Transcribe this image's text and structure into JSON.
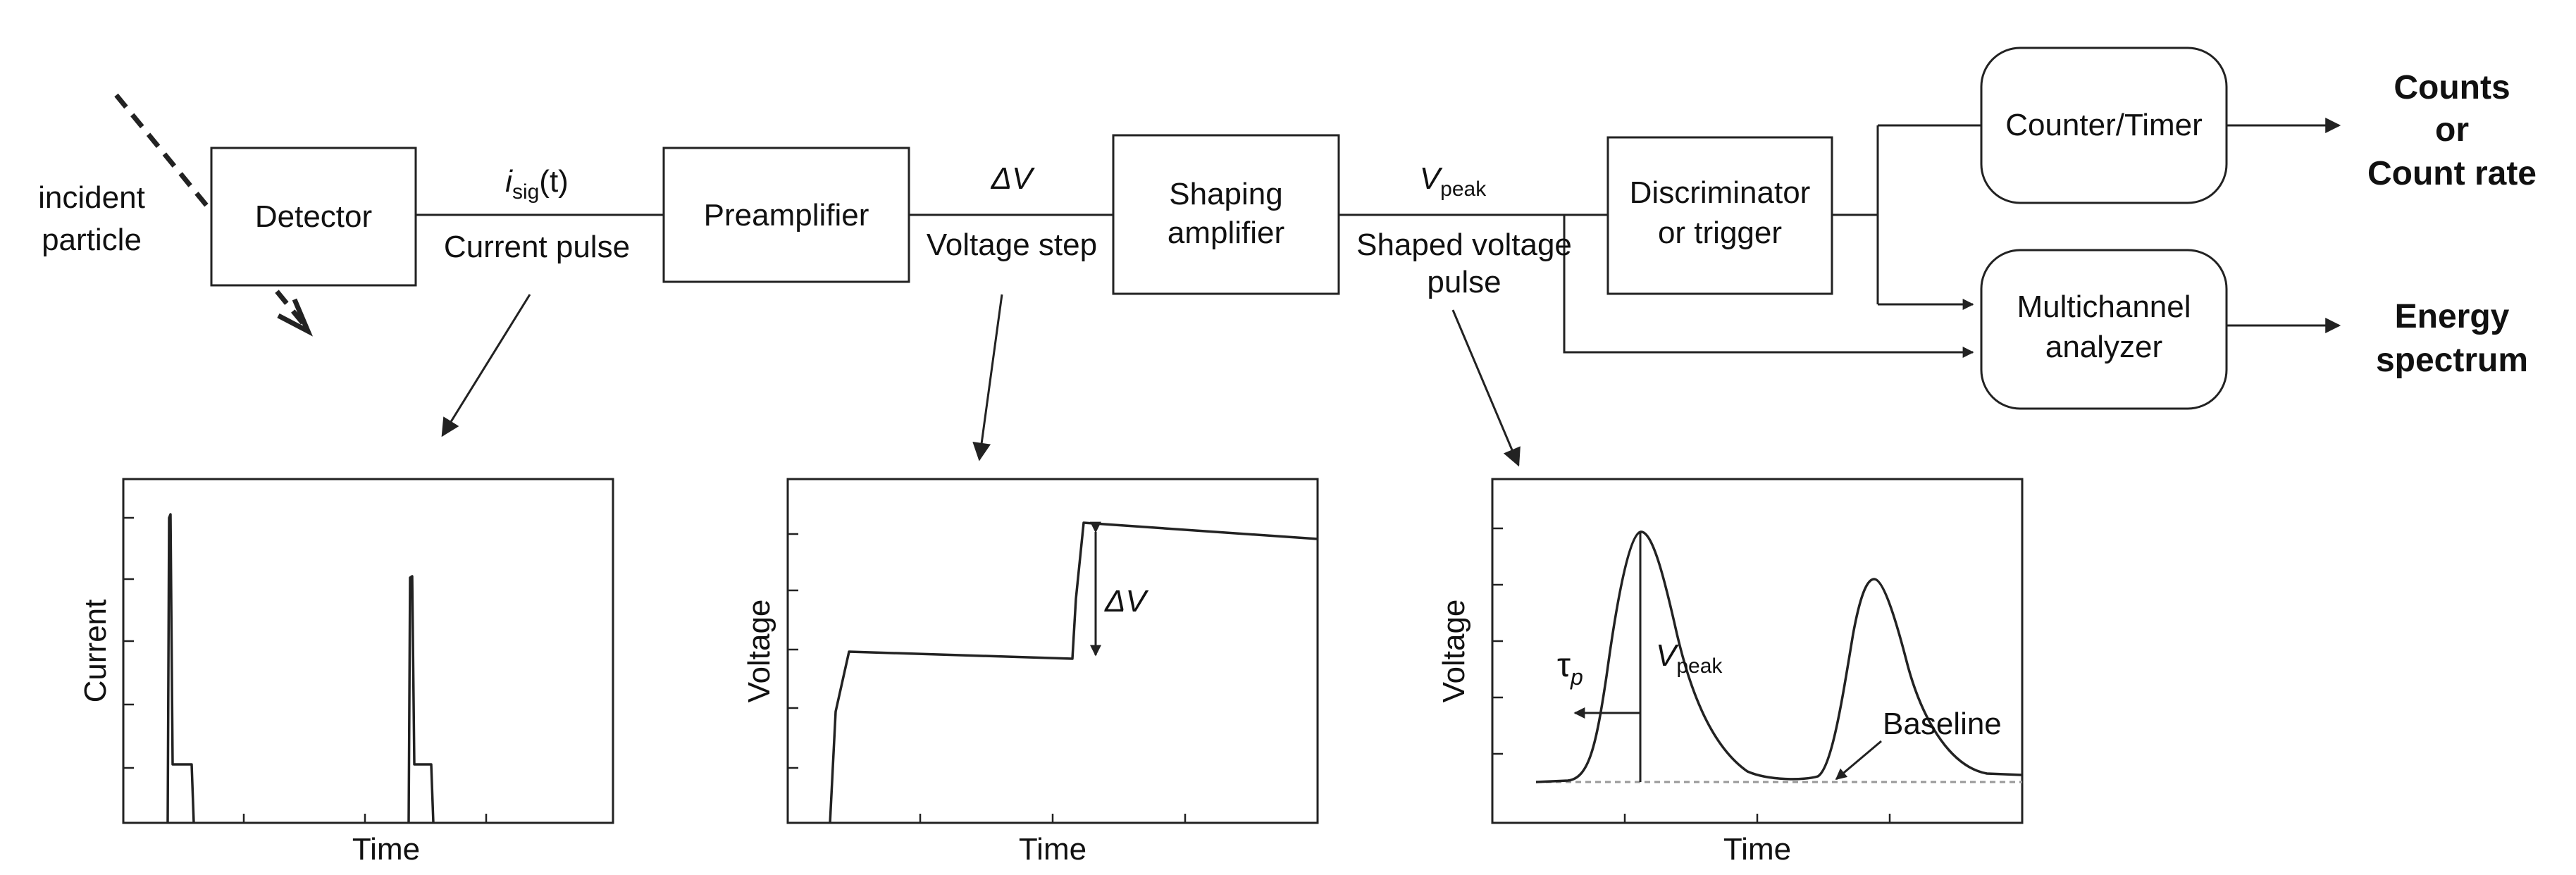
{
  "incident": {
    "line1": "incident",
    "line2": "particle"
  },
  "blocks": {
    "detector": "Detector",
    "preamplifier": "Preamplifier",
    "shaping_line1": "Shaping",
    "shaping_line2": "amplifier",
    "discriminator_line1": "Discriminator",
    "discriminator_line2": "or trigger",
    "counter": "Counter/Timer",
    "mca_line1": "Multichannel",
    "mca_line2": "analyzer"
  },
  "signals": {
    "isig_main": "i",
    "isig_sub": "sig",
    "isig_arg": "(t)",
    "current_pulse": "Current pulse",
    "delta_v": "ΔV",
    "voltage_step": "Voltage step",
    "vpeak_main": "V",
    "vpeak_sub": "peak",
    "shaped_line1": "Shaped voltage",
    "shaped_line2": "pulse"
  },
  "outputs": {
    "counts_line1": "Counts",
    "counts_line2": "or",
    "counts_line3": "Count rate",
    "energy_line1": "Energy",
    "energy_line2": "spectrum"
  },
  "plots": {
    "current": {
      "ylabel": "Current",
      "xlabel": "Time"
    },
    "voltage": {
      "ylabel": "Voltage",
      "xlabel": "Time",
      "annotation": "ΔV"
    },
    "shaped": {
      "ylabel": "Voltage",
      "xlabel": "Time",
      "tau_main": "τ",
      "tau_sub": "p",
      "vpeak_main": "V",
      "vpeak_sub": "peak",
      "baseline": "Baseline"
    }
  },
  "colors": {
    "line": "#222222",
    "baseline": "#999999"
  }
}
